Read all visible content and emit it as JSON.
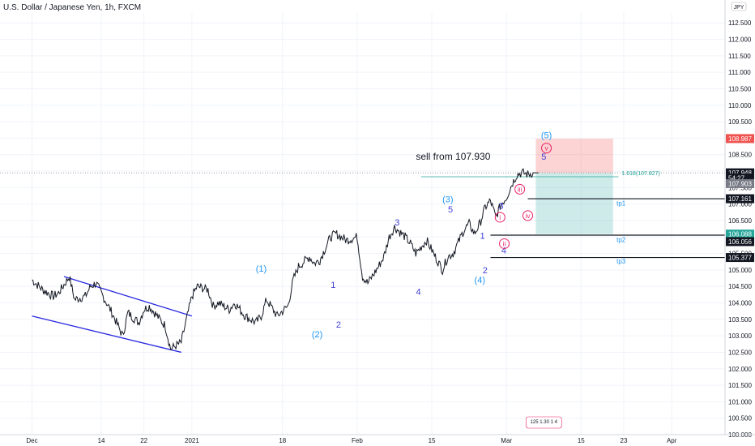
{
  "header": {
    "title": "U.S. Dollar / Japanese Yen, 1h, FXCM"
  },
  "chart_data": {
    "type": "line",
    "ylim": [
      100.0,
      112.8
    ],
    "y_ticks": [
      "112.500",
      "112.000",
      "111.500",
      "111.000",
      "110.500",
      "110.000",
      "109.500",
      "109.000",
      "108.500",
      "108.000",
      "107.500",
      "107.000",
      "106.500",
      "106.000",
      "105.500",
      "105.000",
      "104.500",
      "104.000",
      "103.500",
      "103.000",
      "102.500",
      "102.000",
      "101.500",
      "101.000",
      "100.500",
      "100.000"
    ],
    "x_ticks": [
      {
        "label": "Dec",
        "x": 0.0
      },
      {
        "label": "14",
        "x": 13.0
      },
      {
        "label": "22",
        "x": 21.0
      },
      {
        "label": "2021",
        "x": 30.0
      },
      {
        "label": "18",
        "x": 47.0
      },
      {
        "label": "Feb",
        "x": 61.0
      },
      {
        "label": "15",
        "x": 75.0
      },
      {
        "label": "Mar",
        "x": 89.0
      },
      {
        "label": "15",
        "x": 103.0
      },
      {
        "label": "23",
        "x": 111.0
      },
      {
        "label": "Apr",
        "x": 120.0
      }
    ],
    "currency_badge": "JPY",
    "price_tags": [
      {
        "value": "108.987",
        "price": 108.987,
        "color": "#ef5350"
      },
      {
        "value": "107.948",
        "price": 107.948,
        "color": "#131722"
      },
      {
        "value": "54:27",
        "price": 107.79,
        "color": "#131722"
      },
      {
        "value": "107.903",
        "price": 107.62,
        "color": "#787b86"
      },
      {
        "value": "107.161",
        "price": 107.161,
        "color": "#131722"
      },
      {
        "value": "106.088",
        "price": 106.088,
        "color": "#26a69a"
      },
      {
        "value": "106.056",
        "price": 105.86,
        "color": "#131722"
      },
      {
        "value": "105.377",
        "price": 105.377,
        "color": "#131722"
      }
    ],
    "series": [
      {
        "x": [
          0,
          2,
          4,
          5,
          7,
          8,
          10,
          11,
          12,
          14,
          15,
          17,
          18,
          20,
          21,
          22,
          24,
          25,
          26,
          28,
          29,
          30,
          31,
          33,
          34,
          35,
          37,
          38,
          40,
          42,
          43,
          44,
          46,
          48,
          49,
          50,
          52,
          53,
          54,
          56,
          57,
          59,
          61,
          62,
          63,
          65,
          66,
          67,
          68,
          70,
          71,
          72,
          74,
          75,
          77,
          78,
          79,
          81,
          82,
          83,
          84,
          85,
          86,
          87,
          88,
          89,
          90,
          91,
          92,
          93,
          94,
          95
        ],
        "y": [
          104.7,
          104.4,
          104.2,
          104.3,
          104.8,
          104.1,
          104.2,
          104.5,
          104.6,
          104.0,
          103.7,
          103.0,
          103.7,
          103.4,
          103.8,
          103.9,
          103.5,
          103.3,
          102.6,
          102.8,
          103.5,
          104.2,
          104.5,
          104.4,
          103.9,
          104.0,
          103.8,
          104.0,
          103.6,
          103.4,
          103.6,
          104.1,
          103.6,
          103.9,
          104.7,
          105.1,
          105.4,
          105.2,
          105.3,
          106.0,
          106.1,
          105.9,
          106.0,
          104.8,
          104.6,
          105.1,
          105.4,
          106.0,
          106.3,
          106.0,
          105.8,
          105.5,
          105.9,
          105.6,
          105.0,
          105.4,
          105.5,
          106.2,
          106.4,
          106.1,
          106.4,
          106.9,
          107.1,
          106.6,
          107.0,
          107.2,
          107.6,
          107.9,
          107.95,
          107.9,
          107.95,
          107.948
        ]
      }
    ],
    "channel": {
      "upper": [
        {
          "x": 6,
          "y": 104.8
        },
        {
          "x": 30,
          "y": 103.6
        }
      ],
      "lower": [
        {
          "x": 0,
          "y": 103.6
        },
        {
          "x": 28,
          "y": 102.5
        }
      ]
    },
    "levels": [
      {
        "price": 107.161,
        "x_from": 93,
        "x_to": 130
      },
      {
        "price": 106.056,
        "x_from": 86,
        "x_to": 130
      },
      {
        "price": 105.377,
        "x_from": 86,
        "x_to": 130
      }
    ],
    "fib_line": {
      "price": 107.827,
      "x_from": 73,
      "x_to": 110,
      "label": "1.618(107.827)"
    },
    "last_price_line": 107.948,
    "risk_reward": {
      "x_from": 94.5,
      "x_to": 109,
      "stop": 108.987,
      "entry": 107.948,
      "target": 106.088
    },
    "annotations": [
      {
        "text": "sell from 107.930",
        "x": 79,
        "price": 108.35,
        "color": "#131722",
        "size": 12
      },
      {
        "text": "tp1",
        "x": 110.5,
        "price": 106.95,
        "color": "#2196f3",
        "size": 8
      },
      {
        "text": "tp2",
        "x": 110.5,
        "price": 105.85,
        "color": "#2196f3",
        "size": 8
      },
      {
        "text": "tp3",
        "x": 110.5,
        "price": 105.2,
        "color": "#2196f3",
        "size": 8
      }
    ],
    "waves": [
      {
        "text": "(1)",
        "x": 43,
        "price": 104.95,
        "color": "#2196f3",
        "circle": false
      },
      {
        "text": "(2)",
        "x": 53.5,
        "price": 102.95,
        "color": "#2196f3",
        "circle": false
      },
      {
        "text": "1",
        "x": 56.5,
        "price": 104.45,
        "color": "#3f3fd8",
        "circle": false
      },
      {
        "text": "2",
        "x": 57.5,
        "price": 103.25,
        "color": "#3f3fd8",
        "circle": false
      },
      {
        "text": "3",
        "x": 68.5,
        "price": 106.35,
        "color": "#3f3fd8",
        "circle": false
      },
      {
        "text": "4",
        "x": 72.5,
        "price": 104.25,
        "color": "#3f3fd8",
        "circle": false
      },
      {
        "text": "(3)",
        "x": 78,
        "price": 107.05,
        "color": "#2196f3",
        "circle": false
      },
      {
        "text": "5",
        "x": 78.5,
        "price": 106.75,
        "color": "#3f3fd8",
        "circle": false
      },
      {
        "text": "1",
        "x": 84.5,
        "price": 105.95,
        "color": "#3f3fd8",
        "circle": false
      },
      {
        "text": "2",
        "x": 85,
        "price": 104.9,
        "color": "#3f3fd8",
        "circle": false
      },
      {
        "text": "(4)",
        "x": 84,
        "price": 104.6,
        "color": "#2196f3",
        "circle": false
      },
      {
        "text": "3",
        "x": 88,
        "price": 106.85,
        "color": "#3f3fd8",
        "circle": false
      },
      {
        "text": "4",
        "x": 88.5,
        "price": 105.5,
        "color": "#3f3fd8",
        "circle": false
      },
      {
        "text": "i",
        "x": 87.8,
        "price": 106.5,
        "color": "#e91e63",
        "circle": true
      },
      {
        "text": "ii",
        "x": 88.6,
        "price": 105.7,
        "color": "#e91e63",
        "circle": true
      },
      {
        "text": "iii",
        "x": 91.5,
        "price": 107.35,
        "color": "#e91e63",
        "circle": true
      },
      {
        "text": "iv",
        "x": 93,
        "price": 106.55,
        "color": "#e91e63",
        "circle": true
      },
      {
        "text": "v",
        "x": 96.5,
        "price": 108.6,
        "color": "#e91e63",
        "circle": true
      },
      {
        "text": "5",
        "x": 96,
        "price": 108.35,
        "color": "#3f3fd8",
        "circle": false
      },
      {
        "text": "(5)",
        "x": 96.5,
        "price": 109.0,
        "color": "#2196f3",
        "circle": false
      }
    ],
    "watermark_text": "125 1.30 1 4"
  }
}
